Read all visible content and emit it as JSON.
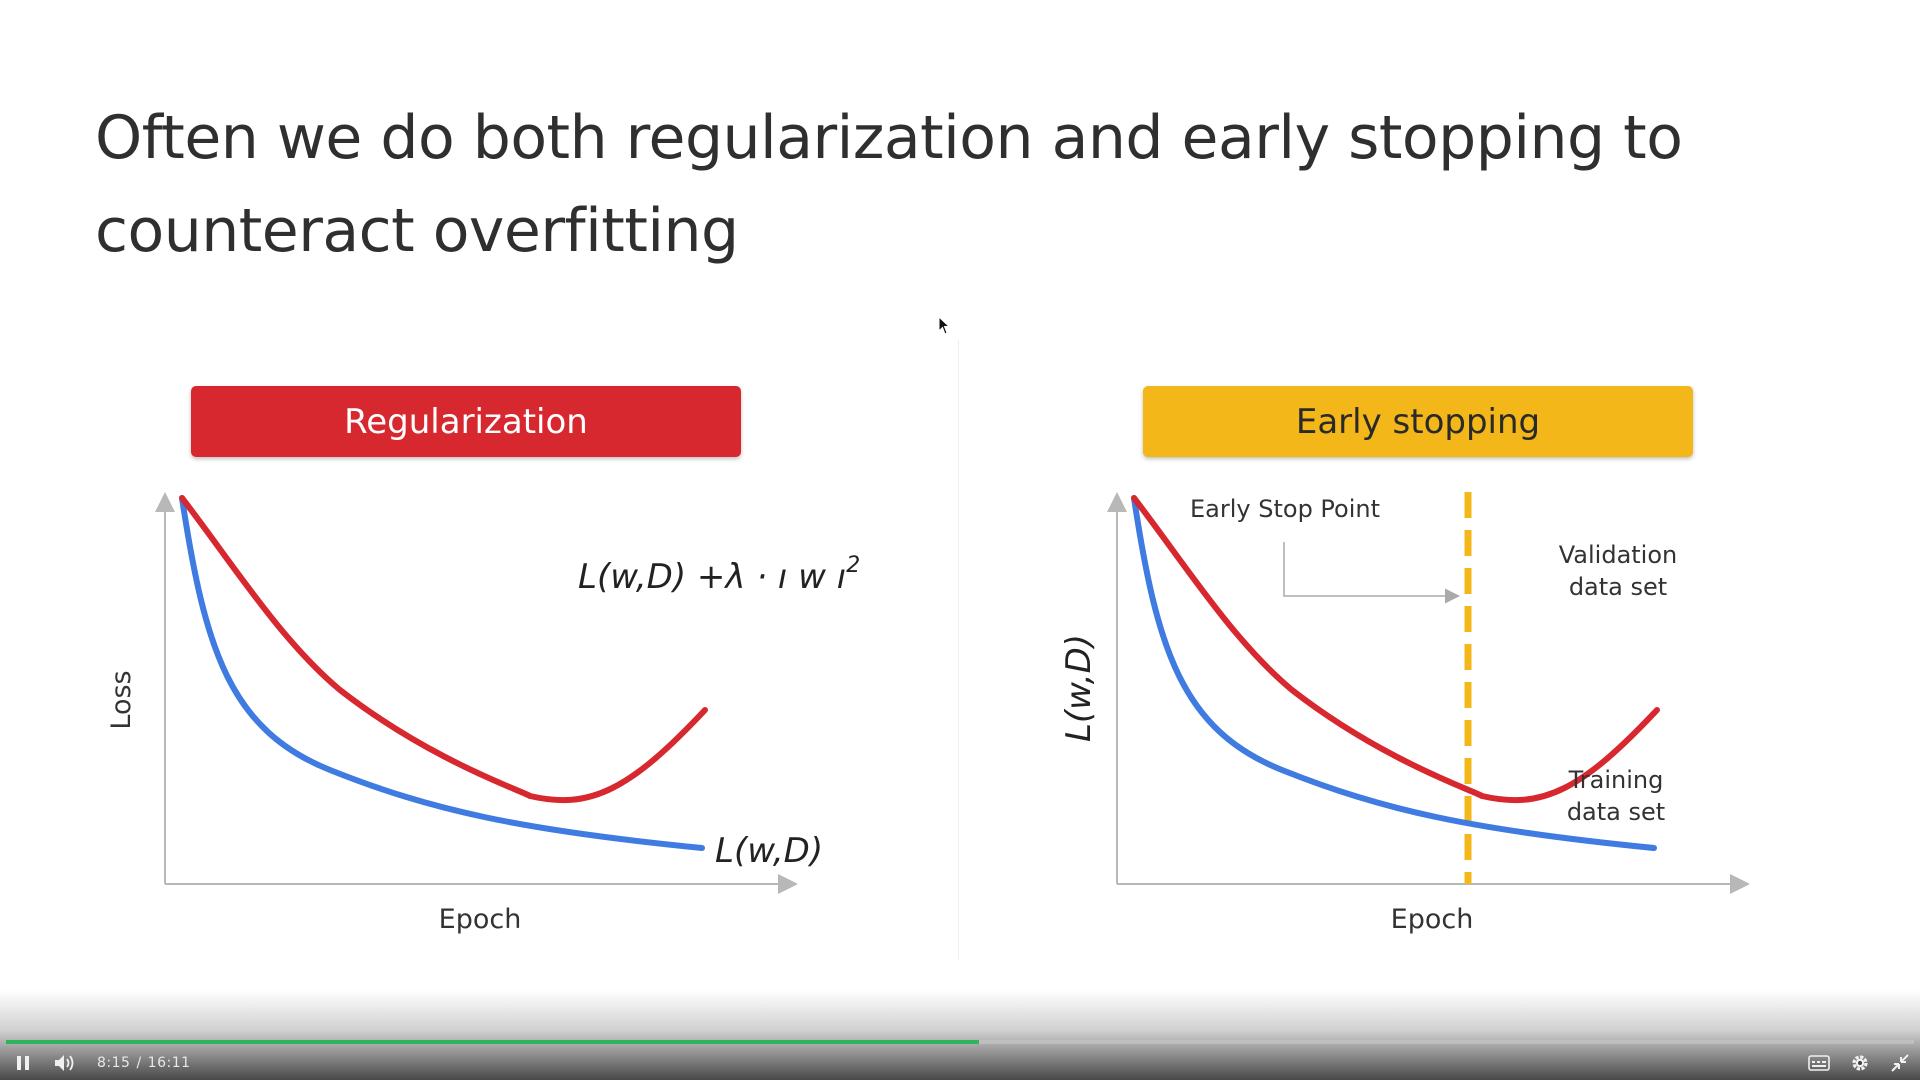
{
  "slide": {
    "title": "Often we do both regularization and early stopping to counteract overfitting"
  },
  "panels": {
    "left": {
      "header": "Regularization",
      "header_color": "#d7282f",
      "y_label": "Loss",
      "x_label": "Epoch",
      "red_curve_label": "L(w,D) +λ · ı w ı",
      "red_curve_superscript": "2",
      "blue_curve_label": "L(w,D)"
    },
    "right": {
      "header": "Early stopping",
      "header_color": "#f4b719",
      "y_label": "L(w,D)",
      "x_label": "Epoch",
      "stop_point_label": "Early Stop Point",
      "validation_label_line1": "Validation",
      "validation_label_line2": "data set",
      "training_label_line1": "Training",
      "training_label_line2": "data set"
    }
  },
  "colors": {
    "red_curve": "#d7282f",
    "blue_curve": "#3f7be0",
    "stop_line": "#f4b719",
    "axis": "#b8b8b8",
    "progress": "#2fb35b"
  },
  "player": {
    "current_time": "8:15",
    "separator": "/",
    "duration": "16:11",
    "progress_fraction": 0.51,
    "icons": {
      "play_pause": "pause-icon",
      "volume": "volume-icon",
      "captions": "captions-icon",
      "settings": "gear-icon",
      "fullscreen": "exit-fullscreen-icon"
    }
  }
}
